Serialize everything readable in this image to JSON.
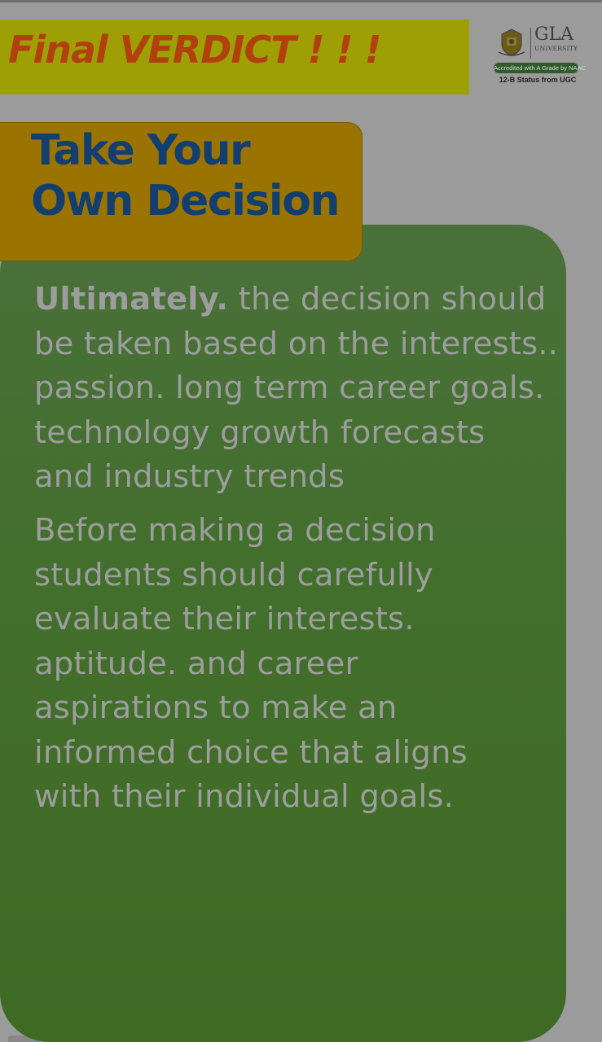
{
  "header": {
    "title": "Final VERDICT ! ! !"
  },
  "logo": {
    "brand": "GLA",
    "subtitle": "UNIVERSITY",
    "accreditation": "Accredited with A Grade by NAAC",
    "status": "12-B Status from UGC"
  },
  "heading": {
    "line1": "Take Your",
    "line2": "Own Decision"
  },
  "paragraph1": {
    "lead": "Ultimately.",
    "line1_rest": " the decision should",
    "line2": "be taken based on the interests..",
    "line3": "passion. long term career goals.",
    "line4": "technology growth forecasts",
    "line5": "and industry trends"
  },
  "paragraph2": {
    "lines": [
      "Before making a decision",
      "students should carefully",
      "evaluate their interests.",
      "aptitude. and career",
      "aspirations to make an",
      "informed choice that aligns",
      "with their individual goals."
    ]
  },
  "colors": {
    "background": "#9b9b9b",
    "header_banner": "#9d9f05",
    "header_title": "#b2400e",
    "heading_box": "#9b7301",
    "heading_text": "#123f6f",
    "panel": "#44702d",
    "body_text": "#9d9d9d"
  }
}
